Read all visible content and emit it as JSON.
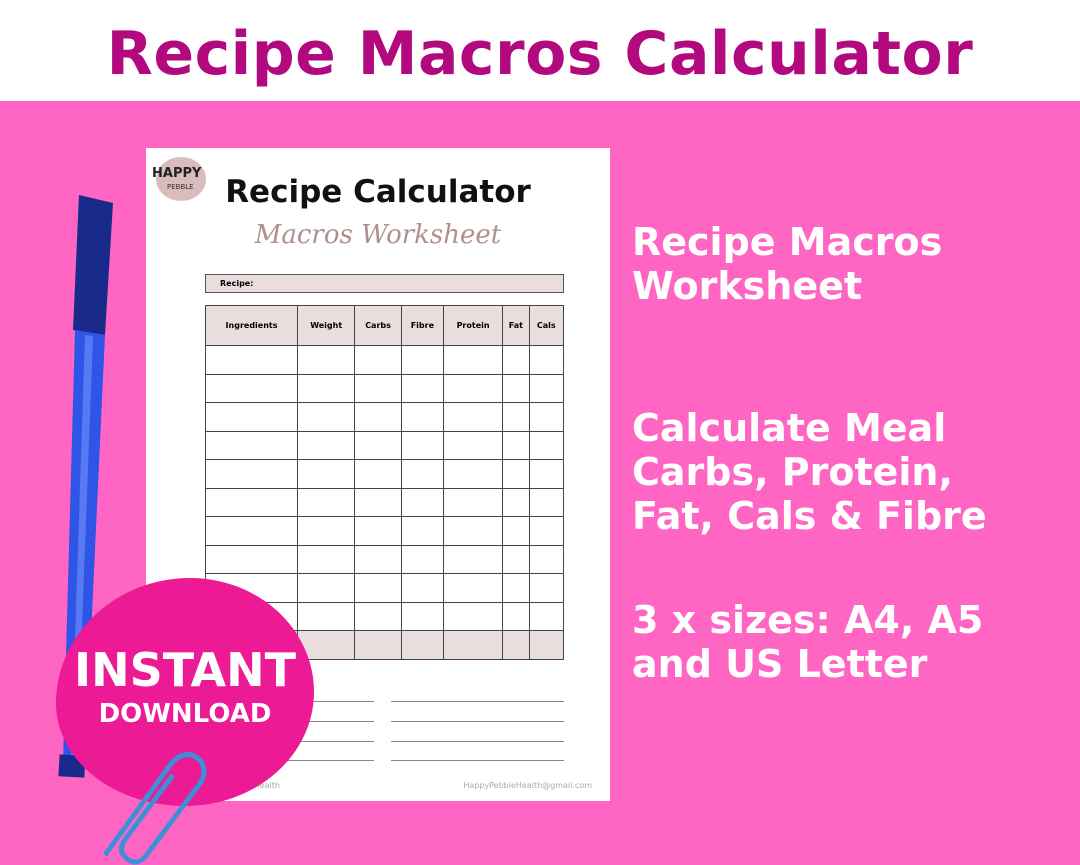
{
  "banner": {
    "title": "Recipe Macros Calculator"
  },
  "sheet": {
    "logo": {
      "line1": "HAPPY",
      "line2": "PEBBLE"
    },
    "title": "Recipe Calculator",
    "subtitle": "Macros Worksheet",
    "recipe_label": "Recipe:",
    "columns": [
      "Ingredients",
      "Weight",
      "Carbs",
      "Fibre",
      "Protein",
      "Fat",
      "Cals"
    ],
    "footer_left": "Happy Pebble Health",
    "footer_right": "HappyPebbleHealth@gmail.com"
  },
  "features": [
    "Recipe Macros Worksheet",
    "Calculate Meal Carbs, Protein, Fat, Cals & Fibre",
    "3 x sizes: A4, A5 and US Letter"
  ],
  "badge": {
    "line1": "INSTANT",
    "line2": "DOWNLOAD"
  },
  "colors": {
    "title": "#b3097f",
    "background": "#ff66c4",
    "badge": "#ec1a94",
    "pen": "#1f3fd0"
  }
}
